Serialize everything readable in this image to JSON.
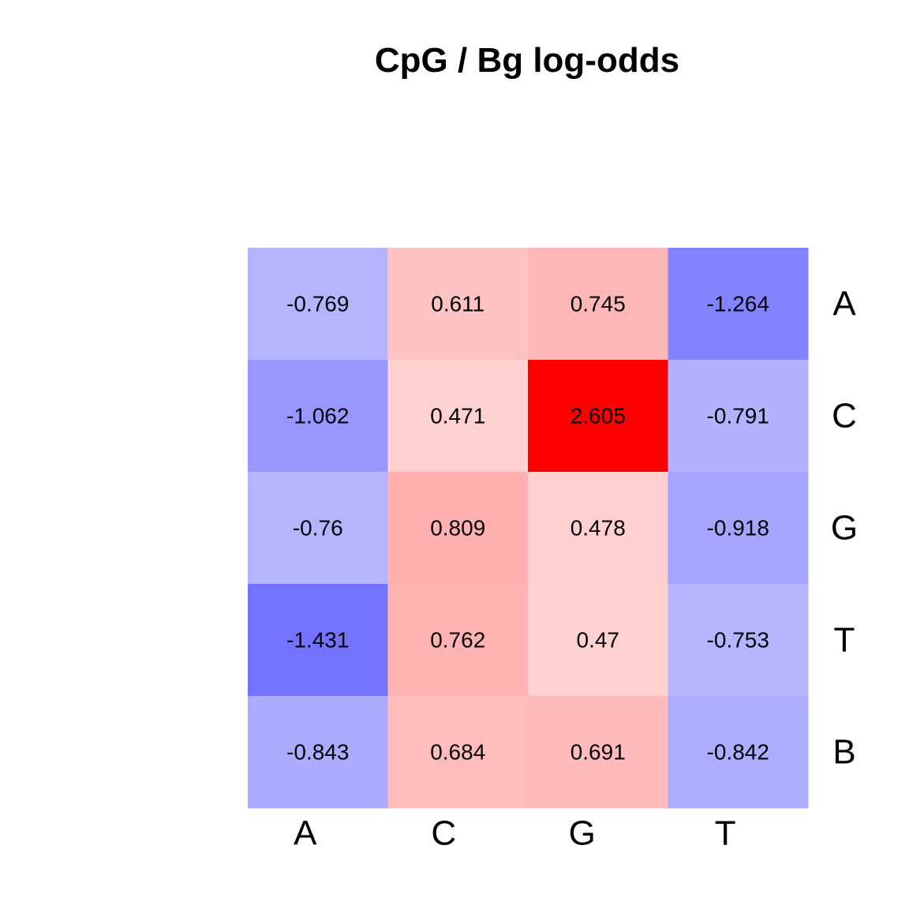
{
  "chart_data": {
    "type": "heatmap",
    "title": "CpG / Bg log-odds",
    "columns": [
      "A",
      "C",
      "G",
      "T"
    ],
    "rows": [
      "A",
      "C",
      "G",
      "T",
      "B"
    ],
    "values": [
      [
        -0.769,
        0.611,
        0.745,
        -1.264
      ],
      [
        -1.062,
        0.471,
        2.605,
        -0.791
      ],
      [
        -0.76,
        0.809,
        0.478,
        -0.918
      ],
      [
        -1.431,
        0.762,
        0.47,
        -0.753
      ],
      [
        -0.843,
        0.684,
        0.691,
        -0.842
      ]
    ],
    "colors": {
      "low": "#0000ff",
      "mid": "#ffffff",
      "high": "#ff0000"
    },
    "color_range": [
      -2.605,
      2.605
    ],
    "legend": "none",
    "grid": false
  }
}
